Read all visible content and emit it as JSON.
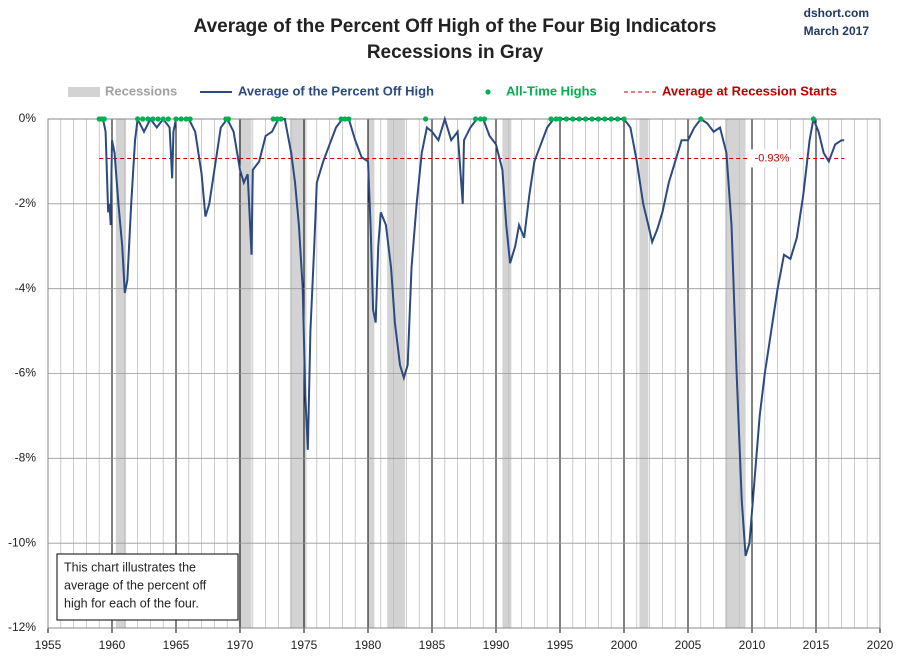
{
  "chart_data": {
    "type": "line",
    "title": "Average of the Percent Off High of the Four Big Indicators",
    "subtitle": "Recessions in Gray",
    "source": "dshort.com",
    "date": "March 2017",
    "xlim": [
      1955,
      2020
    ],
    "xticks": [
      1955,
      1960,
      1965,
      1970,
      1975,
      1980,
      1985,
      1990,
      1995,
      2000,
      2005,
      2010,
      2015,
      2020
    ],
    "x_minor_step": 1,
    "ylim": [
      -12,
      0
    ],
    "yticks": [
      {
        "value": 0,
        "label": "0%"
      },
      {
        "value": -2,
        "label": "-2%"
      },
      {
        "value": -4,
        "label": "-4%"
      },
      {
        "value": -6,
        "label": "-6%"
      },
      {
        "value": -8,
        "label": "-8%"
      },
      {
        "value": -10,
        "label": "-10%"
      },
      {
        "value": -12,
        "label": "-12%"
      }
    ],
    "grid": true,
    "recessions": {
      "name": "Recessions",
      "color": "#d3d3d3",
      "spans": [
        [
          1960.3,
          1961.1
        ],
        [
          1969.9,
          1970.9
        ],
        [
          1973.9,
          1975.2
        ],
        [
          1980.0,
          1980.5
        ],
        [
          1981.5,
          1982.9
        ],
        [
          1990.5,
          1991.2
        ],
        [
          2001.2,
          2001.9
        ],
        [
          2007.9,
          2009.5
        ]
      ]
    },
    "series": [
      {
        "name": "Average of the Percent Off High",
        "color": "#2b4a80",
        "x": [
          1959.0,
          1959.3,
          1959.5,
          1959.7,
          1959.8,
          1959.9,
          1960.0,
          1960.2,
          1960.5,
          1960.8,
          1961.0,
          1961.2,
          1961.5,
          1961.8,
          1962.0,
          1962.5,
          1963.0,
          1963.5,
          1964.0,
          1964.5,
          1964.7,
          1964.8,
          1965.0,
          1966.0,
          1966.5,
          1967.0,
          1967.3,
          1967.6,
          1968.0,
          1968.5,
          1969.0,
          1969.5,
          1970.0,
          1970.3,
          1970.6,
          1970.9,
          1971.0,
          1971.5,
          1972.0,
          1972.5,
          1973.0,
          1973.5,
          1974.0,
          1974.3,
          1974.6,
          1974.9,
          1975.1,
          1975.3,
          1975.5,
          1975.8,
          1976.0,
          1976.5,
          1977.0,
          1977.5,
          1978.0,
          1978.5,
          1979.0,
          1979.5,
          1980.0,
          1980.2,
          1980.4,
          1980.6,
          1980.8,
          1981.0,
          1981.4,
          1981.8,
          1982.1,
          1982.5,
          1982.8,
          1983.1,
          1983.4,
          1983.8,
          1984.2,
          1984.6,
          1985.0,
          1985.5,
          1986.0,
          1986.5,
          1987.0,
          1987.4,
          1987.5,
          1988.0,
          1988.5,
          1989.0,
          1989.5,
          1990.0,
          1990.5,
          1990.8,
          1991.1,
          1991.5,
          1991.8,
          1992.2,
          1992.6,
          1993.0,
          1993.5,
          1994.0,
          1994.5,
          1995.0,
          1996.0,
          1997.0,
          1998.0,
          1999.0,
          2000.0,
          2000.5,
          2001.0,
          2001.5,
          2001.9,
          2002.2,
          2002.6,
          2003.0,
          2003.5,
          2004.0,
          2004.5,
          2005.0,
          2005.5,
          2006.0,
          2006.5,
          2007.0,
          2007.5,
          2008.0,
          2008.4,
          2008.8,
          2009.2,
          2009.5,
          2009.8,
          2010.2,
          2010.6,
          2011.0,
          2011.5,
          2012.0,
          2012.5,
          2013.0,
          2013.5,
          2014.0,
          2014.5,
          2014.8,
          2015.2,
          2015.6,
          2016.0,
          2016.5,
          2017.0,
          2017.2
        ],
        "values": [
          0,
          0,
          -0.3,
          -2.2,
          -2.0,
          -2.5,
          -0.5,
          -0.8,
          -2.0,
          -3.0,
          -4.1,
          -3.8,
          -2.0,
          -0.5,
          0,
          -0.3,
          0,
          -0.2,
          0,
          -0.2,
          -1.4,
          -0.3,
          0,
          0,
          -0.3,
          -1.3,
          -2.3,
          -2.0,
          -1.2,
          -0.2,
          0,
          -0.3,
          -1.2,
          -1.5,
          -1.3,
          -3.2,
          -1.2,
          -1.0,
          -0.4,
          -0.3,
          0,
          0,
          -0.8,
          -1.5,
          -2.5,
          -4.0,
          -6.5,
          -7.8,
          -5.0,
          -3.0,
          -1.5,
          -1.0,
          -0.6,
          -0.2,
          0,
          0,
          -0.5,
          -0.9,
          -1.0,
          -2.5,
          -4.5,
          -4.8,
          -3.0,
          -2.2,
          -2.5,
          -3.5,
          -4.8,
          -5.8,
          -6.1,
          -5.8,
          -3.5,
          -2.0,
          -0.8,
          -0.2,
          -0.3,
          -0.5,
          0,
          -0.5,
          -0.3,
          -2.0,
          -0.5,
          -0.2,
          0,
          0,
          -0.4,
          -0.6,
          -1.2,
          -2.5,
          -3.4,
          -3.0,
          -2.5,
          -2.8,
          -1.8,
          -1.0,
          -0.6,
          -0.2,
          0,
          0,
          0,
          0,
          0,
          0,
          0,
          -0.2,
          -1.0,
          -2.0,
          -2.5,
          -2.9,
          -2.6,
          -2.2,
          -1.5,
          -1.0,
          -0.5,
          -0.5,
          -0.2,
          0,
          -0.1,
          -0.3,
          -0.2,
          -0.8,
          -2.5,
          -6.0,
          -9.0,
          -10.3,
          -10.0,
          -8.5,
          -7.0,
          -6.0,
          -5.0,
          -4.0,
          -3.2,
          -3.3,
          -2.8,
          -1.8,
          -0.5,
          0,
          -0.3,
          -0.8,
          -1.0,
          -0.6,
          -0.5,
          -0.5
        ]
      }
    ],
    "highs": {
      "name": "All-Time Highs",
      "color": "#00b050",
      "x": [
        1959.0,
        1959.2,
        1959.4,
        1962.0,
        1962.4,
        1962.8,
        1963.2,
        1963.6,
        1964.0,
        1964.4,
        1965.0,
        1965.4,
        1965.8,
        1966.1,
        1968.9,
        1969.1,
        1972.6,
        1972.9,
        1973.2,
        1977.9,
        1978.2,
        1978.5,
        1984.5,
        1988.4,
        1988.8,
        1989.1,
        1994.3,
        1994.7,
        1995.0,
        1995.5,
        1996.0,
        1996.5,
        1997.0,
        1997.5,
        1998.0,
        1998.5,
        1999.0,
        1999.5,
        2000.0,
        2006.0,
        2014.8
      ],
      "values": [
        0,
        0,
        0,
        0,
        0,
        0,
        0,
        0,
        0,
        0,
        0,
        0,
        0,
        0,
        0,
        0,
        0,
        0,
        0,
        0,
        0,
        0,
        0,
        0,
        0,
        0,
        0,
        0,
        0,
        0,
        0,
        0,
        0,
        0,
        0,
        0,
        0,
        0,
        0,
        0,
        0
      ]
    },
    "reference": {
      "name": "Average at Recession Starts",
      "color": "#c00000",
      "value": -0.93,
      "value_label": "-0.93%"
    },
    "annotation": [
      "This chart illustrates the",
      "average of the percent off",
      "high for each of the four."
    ]
  }
}
